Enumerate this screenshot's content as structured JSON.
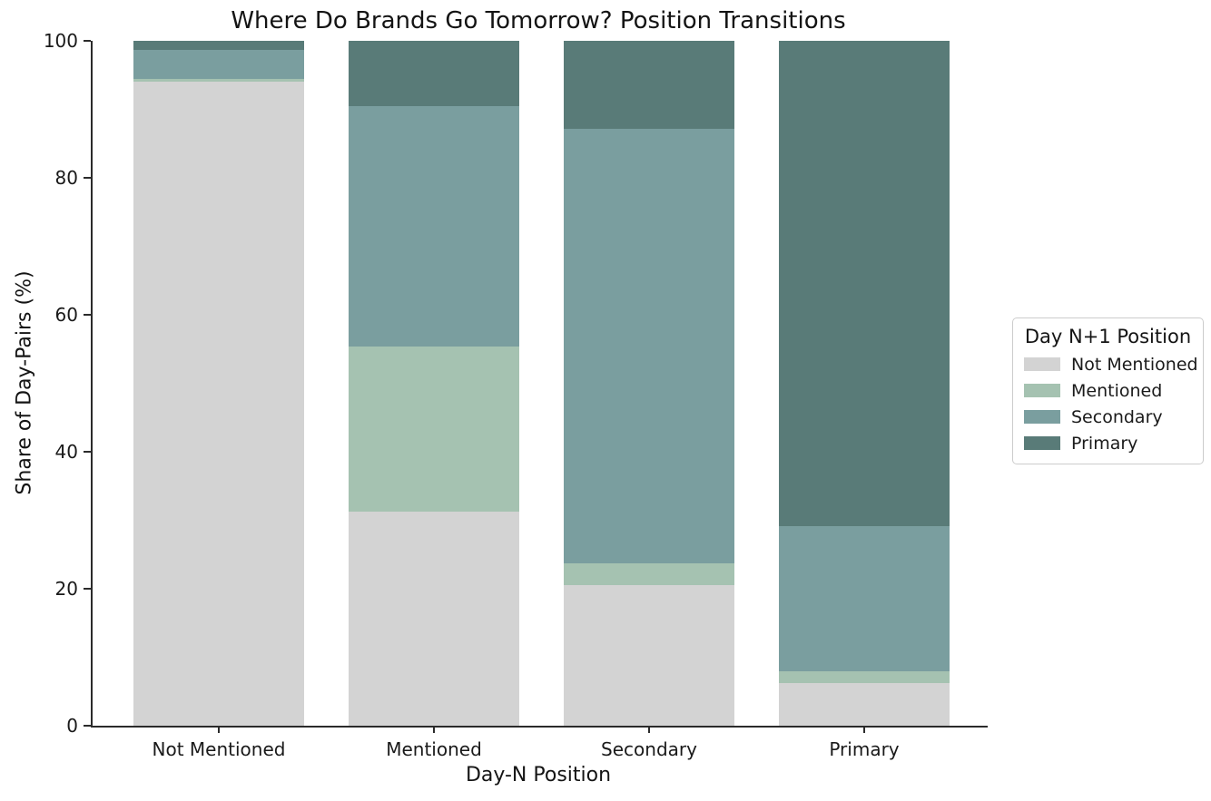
{
  "chart_data": {
    "type": "bar",
    "variant": "stacked-100-percent",
    "title": "Where Do Brands Go Tomorrow? Position Transitions",
    "xlabel": "Day-N Position",
    "ylabel": "Share of Day-Pairs (%)",
    "categories": [
      "Not Mentioned",
      "Mentioned",
      "Secondary",
      "Primary"
    ],
    "series": [
      {
        "name": "Not Mentioned",
        "color": "#d3d3d3",
        "values": [
          94.0,
          31.2,
          20.5,
          6.2
        ]
      },
      {
        "name": "Mentioned",
        "color": "#a5c2b1",
        "values": [
          0.5,
          24.2,
          3.2,
          1.8
        ]
      },
      {
        "name": "Secondary",
        "color": "#7a9e9f",
        "values": [
          4.2,
          35.1,
          63.4,
          21.2
        ]
      },
      {
        "name": "Primary",
        "color": "#597b78",
        "values": [
          1.3,
          9.5,
          12.9,
          70.8
        ]
      }
    ],
    "yticks": [
      0,
      20,
      40,
      60,
      80,
      100
    ],
    "ylim": [
      0,
      100
    ],
    "grid": false,
    "legend": {
      "title": "Day N+1 Position",
      "position": "center-right-outside"
    },
    "axis_color": "#2b2b2b",
    "background_color": "#ffffff"
  }
}
